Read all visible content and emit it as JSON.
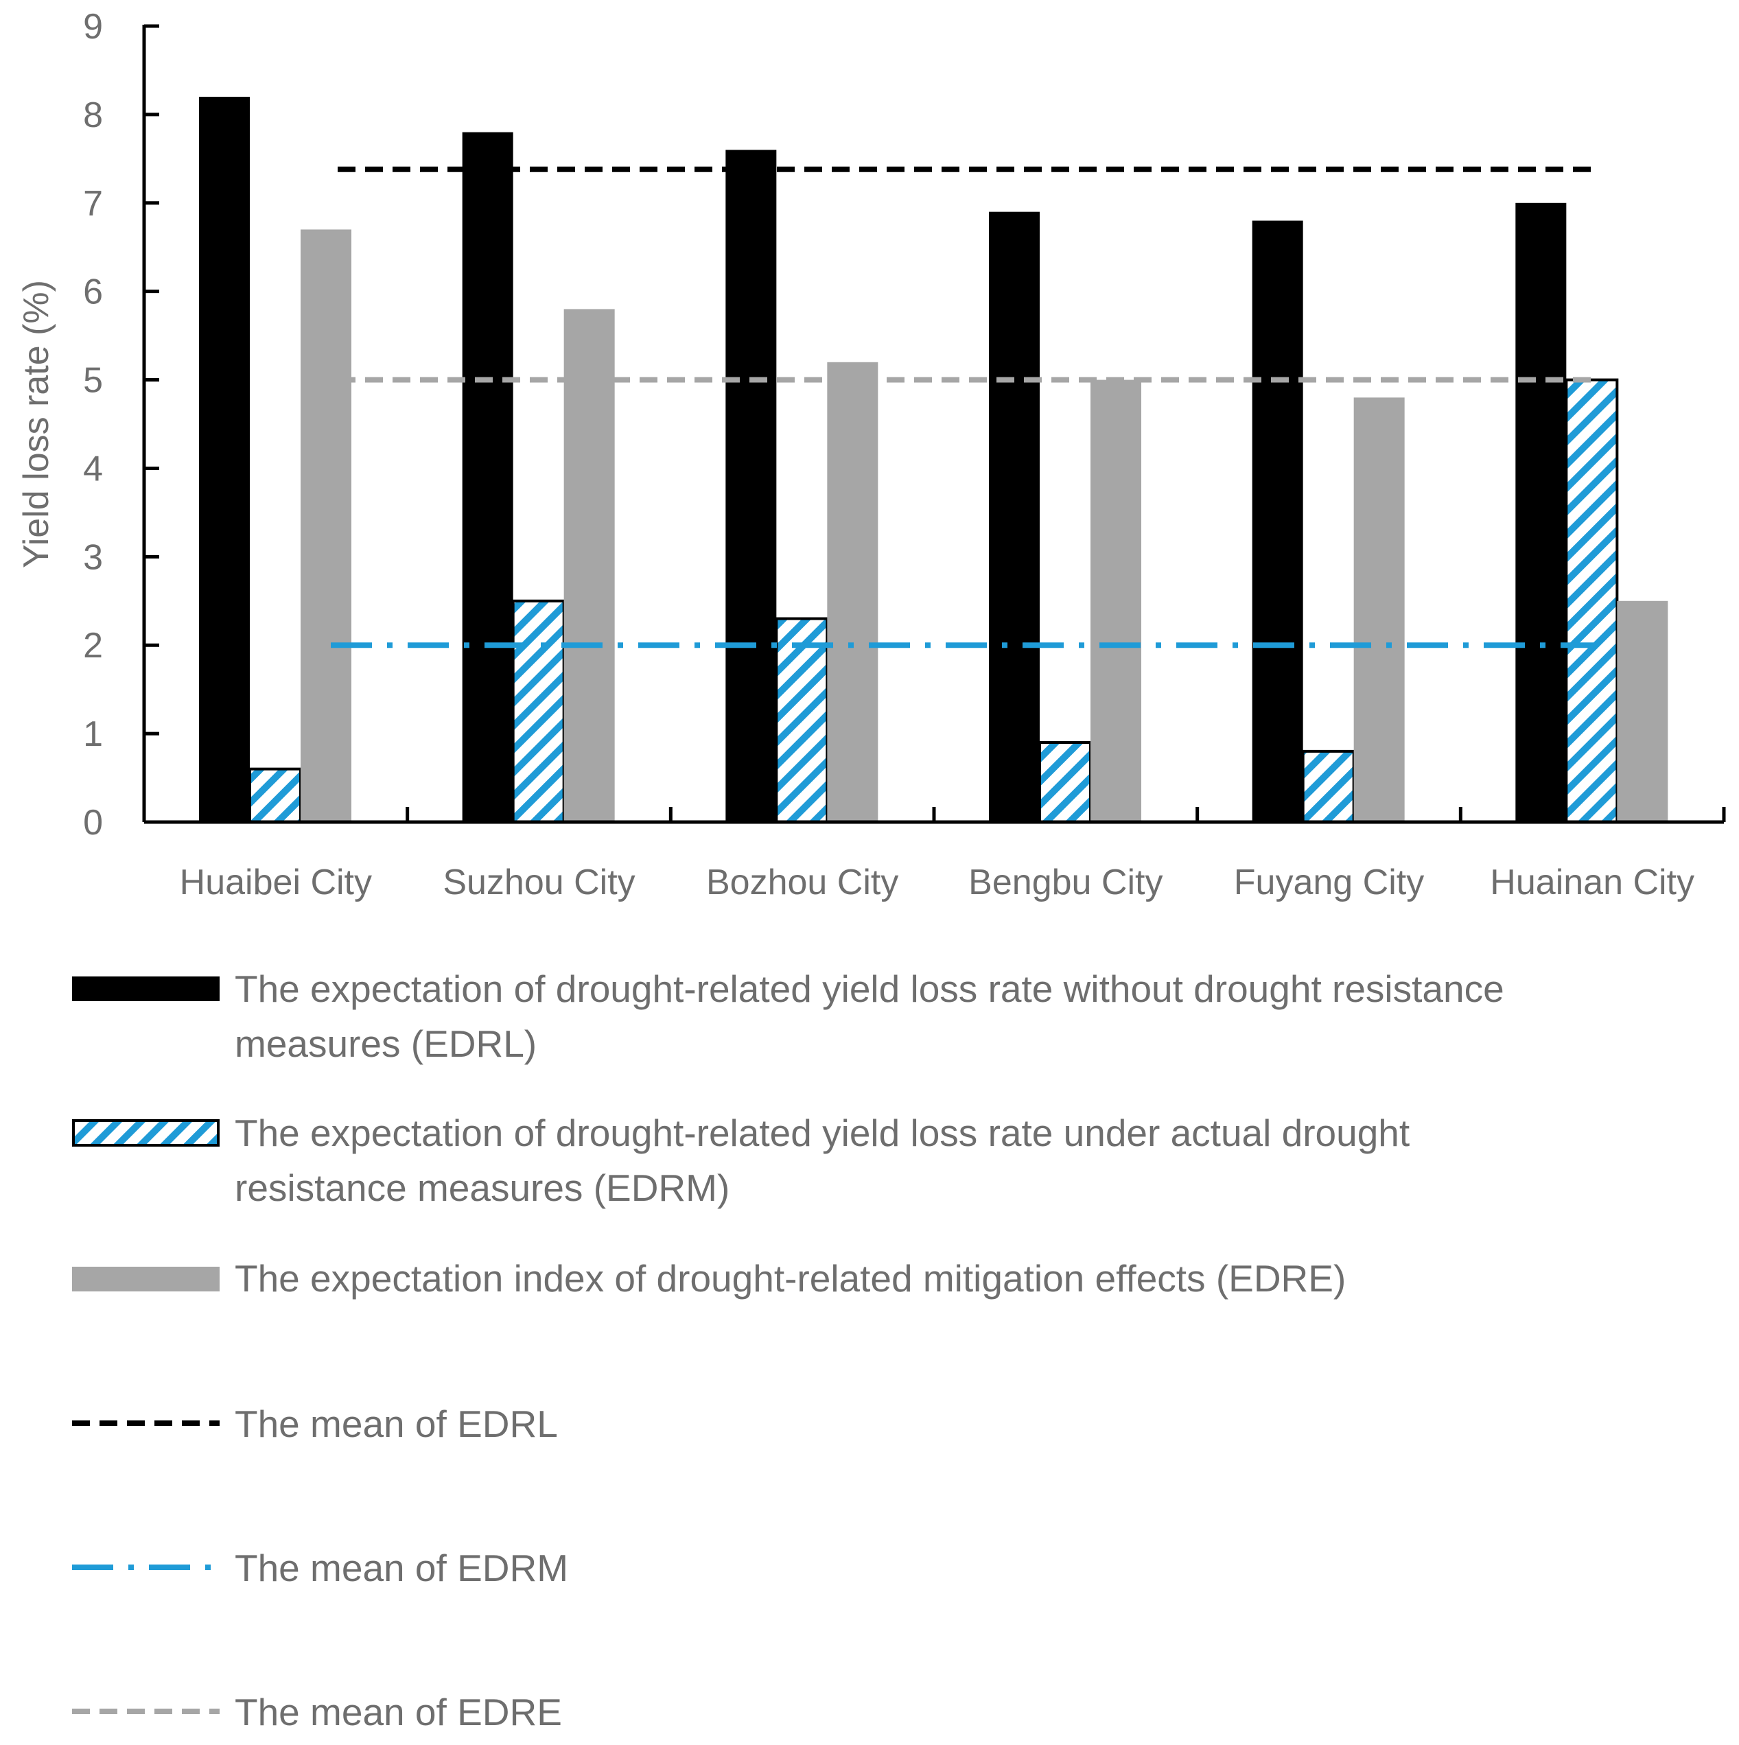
{
  "chart_data": {
    "type": "bar",
    "title": "",
    "xlabel": "",
    "ylabel": "Yield loss rate (%)",
    "ylim": [
      0,
      9
    ],
    "yticks": [
      "0",
      "1",
      "2",
      "3",
      "4",
      "5",
      "6",
      "7",
      "8",
      "9"
    ],
    "categories": [
      "Huaibei City",
      "Suzhou City",
      "Bozhou City",
      "Bengbu City",
      "Fuyang City",
      "Huainan City"
    ],
    "series": [
      {
        "key": "edrl",
        "name": "The expectation of drought-related yield loss rate without drought resistance measures (EDRL)",
        "name_lines": [
          "The expectation of drought-related yield loss rate without drought resistance",
          "measures (EDRL)"
        ],
        "color": "#000000",
        "values": [
          8.2,
          7.8,
          7.6,
          6.9,
          6.8,
          7.0
        ]
      },
      {
        "key": "edrm",
        "name": "The expectation of drought-related yield loss rate under actual drought resistance measures (EDRM)",
        "name_lines": [
          "The expectation of drought-related yield loss rate under actual drought",
          "resistance measures (EDRM)"
        ],
        "color": "#1f9bd7",
        "values": [
          0.6,
          2.5,
          2.3,
          0.9,
          0.8,
          5.0
        ]
      },
      {
        "key": "edre",
        "name": "The expectation index of drought-related mitigation effects (EDRE)",
        "name_lines": [
          "The expectation index of drought-related mitigation effects (EDRE)"
        ],
        "color": "#a6a6a6",
        "values": [
          6.7,
          5.8,
          5.2,
          5.0,
          4.8,
          2.5
        ]
      }
    ],
    "mean_lines": [
      {
        "key": "mean-edrl",
        "name": "The mean of EDRL",
        "value": 7.38,
        "color": "#000000",
        "style": "dashed"
      },
      {
        "key": "mean-edrm",
        "name": "The mean of EDRM",
        "value": 2.0,
        "color": "#1f9bd7",
        "style": "dash-dot"
      },
      {
        "key": "mean-edre",
        "name": "The mean of EDRE",
        "value": 5.0,
        "color": "#a6a6a6",
        "style": "dashed"
      }
    ],
    "legend_position": "bottom",
    "grid": false
  }
}
